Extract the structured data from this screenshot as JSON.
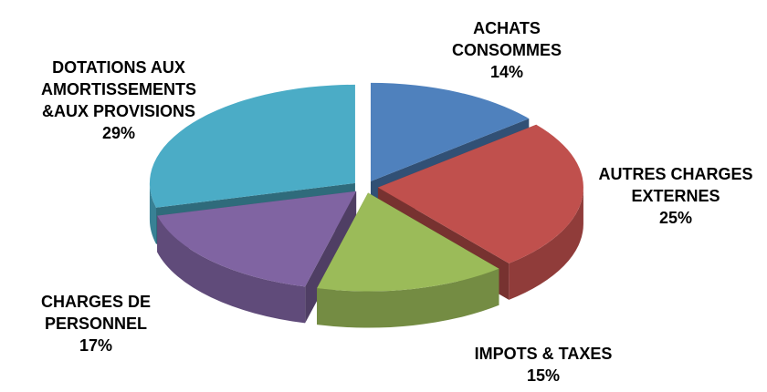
{
  "chart_data": {
    "type": "pie3d",
    "categories": [
      "ACHATS\nCONSOMMES",
      "AUTRES CHARGES\nEXTERNES",
      "IMPOTS & TAXES",
      "CHARGES DE\nPERSONNEL",
      "DOTATIONS AUX\nAMORTISSEMENTS\n&AUX PROVISIONS"
    ],
    "values": [
      14,
      25,
      15,
      17,
      29
    ],
    "value_labels": [
      "14%",
      "25%",
      "15%",
      "17%",
      "29%"
    ],
    "colors": [
      "#4f81bd",
      "#c0504d",
      "#9bbb59",
      "#8064a2",
      "#4bacc6"
    ]
  }
}
